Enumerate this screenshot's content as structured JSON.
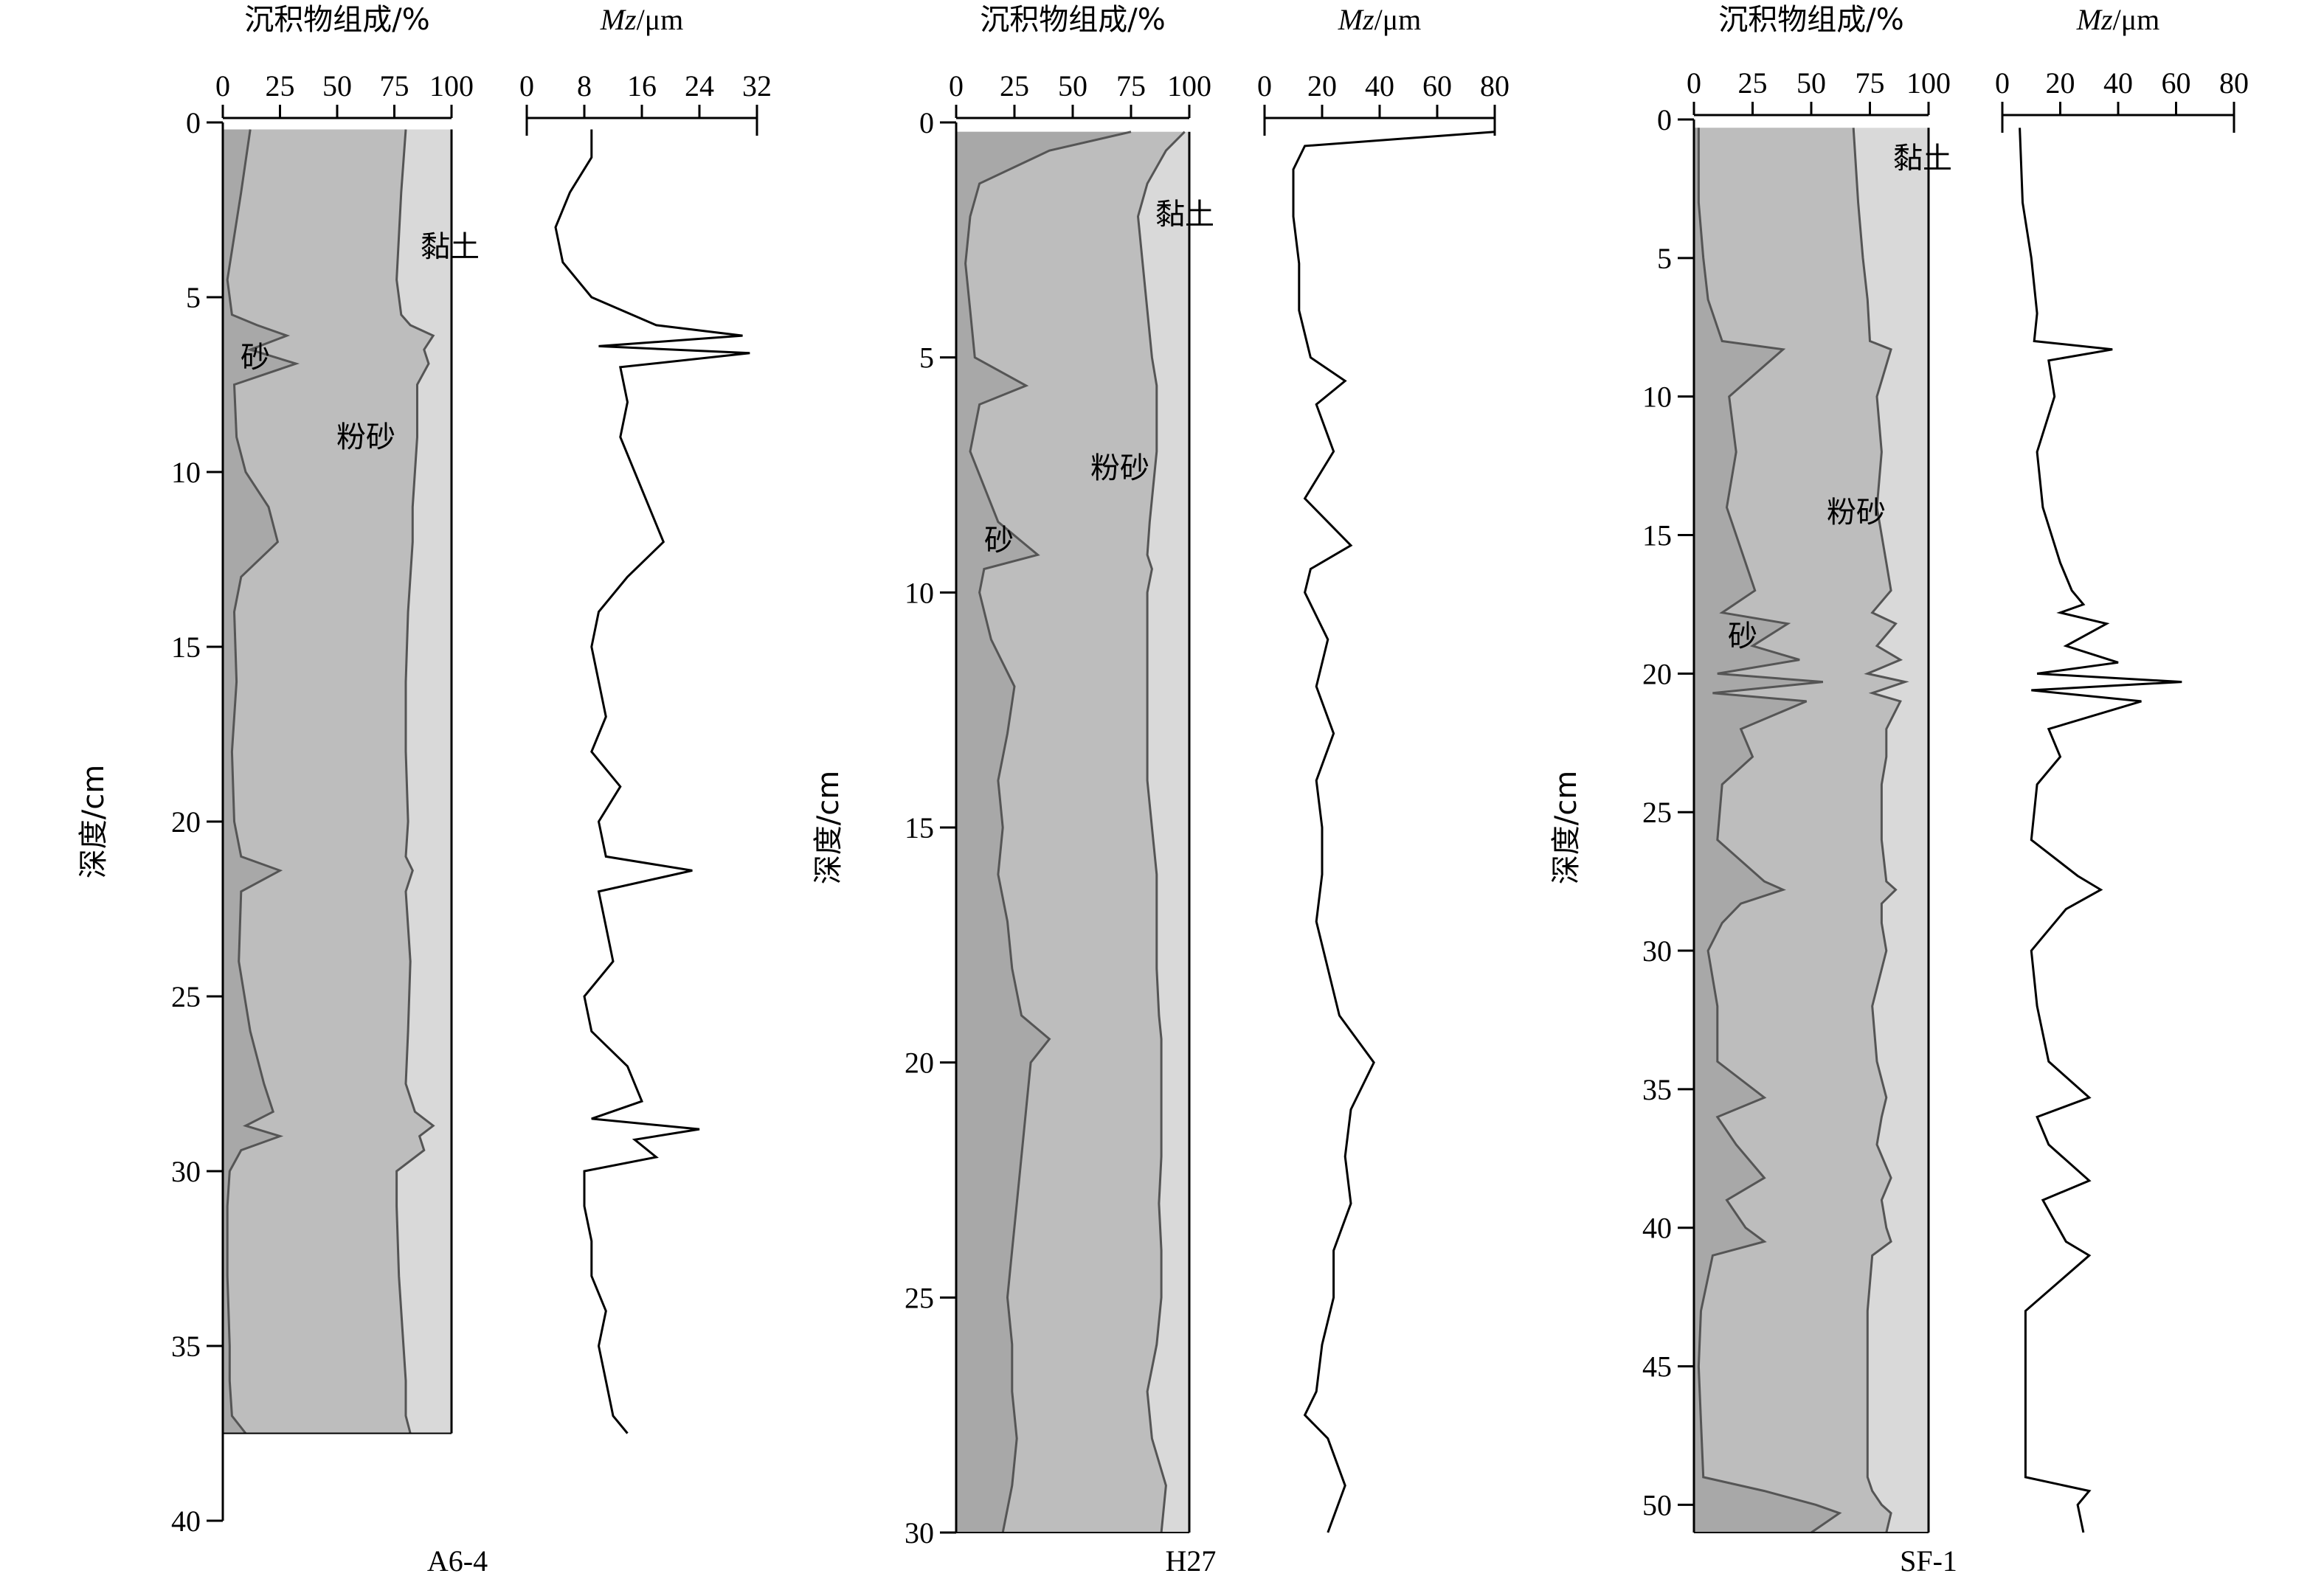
{
  "chart_data": [
    {
      "type": "area",
      "core": "A6-4",
      "composition_title": "沉积物组成/%",
      "mz_title_italic": "Mz",
      "mz_title_unit": "/μm",
      "ylabel": "深度/cm",
      "ylim": [
        0,
        40
      ],
      "yticks": [
        "0",
        "5",
        "10",
        "15",
        "20",
        "25",
        "30",
        "35",
        "40"
      ],
      "comp_xticks": [
        "0",
        "25",
        "50",
        "75",
        "100"
      ],
      "mz_xlim": [
        0,
        32
      ],
      "mz_xticks": [
        "0",
        "8",
        "16",
        "24",
        "32"
      ],
      "labels": {
        "sand": "砂",
        "silt": "粉砂",
        "clay": "黏土"
      },
      "depth": [
        0.2,
        2,
        4.5,
        5.5,
        5.8,
        6.1,
        6.5,
        6.9,
        7.5,
        9,
        10,
        11,
        12,
        13,
        14,
        16,
        18,
        20,
        21,
        21.4,
        22,
        24,
        26,
        27.5,
        28.3,
        28.7,
        29,
        29.4,
        30,
        31,
        33,
        35,
        36,
        37,
        37.5
      ],
      "sand_pct": [
        12,
        8,
        2,
        4,
        15,
        28,
        12,
        32,
        5,
        6,
        10,
        20,
        24,
        8,
        5,
        6,
        4,
        5,
        8,
        25,
        8,
        7,
        12,
        18,
        22,
        10,
        25,
        8,
        3,
        2,
        2,
        3,
        3,
        4,
        10
      ],
      "silt_clay_boundary_pct": [
        80,
        78,
        76,
        78,
        82,
        92,
        88,
        90,
        85,
        85,
        84,
        83,
        83,
        82,
        81,
        80,
        80,
        81,
        80,
        83,
        80,
        82,
        81,
        80,
        84,
        92,
        86,
        88,
        76,
        76,
        77,
        79,
        80,
        80,
        82
      ],
      "mz_depth": [
        0.2,
        1,
        2,
        3,
        4,
        5,
        5.8,
        6.1,
        6.4,
        6.6,
        7,
        8,
        9,
        10,
        11,
        12,
        13,
        14,
        15,
        17,
        18,
        19,
        20,
        21,
        21.4,
        22,
        23,
        24,
        25,
        26,
        27,
        28,
        28.5,
        28.8,
        29.1,
        29.6,
        30,
        31,
        32,
        33,
        34,
        35,
        36,
        37,
        37.5
      ],
      "mz": [
        9,
        9,
        6,
        4,
        5,
        9,
        18,
        30,
        10,
        31,
        13,
        14,
        13,
        15,
        17,
        19,
        14,
        10,
        9,
        11,
        9,
        13,
        10,
        11,
        23,
        10,
        11,
        12,
        8,
        9,
        14,
        16,
        9,
        24,
        15,
        18,
        8,
        8,
        9,
        9,
        11,
        10,
        11,
        12,
        14
      ]
    },
    {
      "type": "area",
      "core": "H27",
      "composition_title": "沉积物组成/%",
      "mz_title_italic": "Mz",
      "mz_title_unit": "/μm",
      "ylabel": "深度/cm",
      "ylim": [
        0,
        30
      ],
      "yticks": [
        "0",
        "5",
        "10",
        "15",
        "20",
        "25",
        "30"
      ],
      "comp_xticks": [
        "0",
        "25",
        "50",
        "75",
        "100"
      ],
      "mz_xlim": [
        0,
        80
      ],
      "mz_xticks": [
        "0",
        "20",
        "40",
        "60",
        "80"
      ],
      "labels": {
        "sand": "砂",
        "silt": "粉砂",
        "clay": "黏土"
      },
      "depth": [
        0.2,
        0.6,
        1.3,
        2,
        3,
        4,
        5,
        5.6,
        6,
        7,
        8.5,
        9.2,
        9.5,
        10,
        11,
        12,
        13,
        14,
        15,
        16,
        17,
        18,
        19,
        19.5,
        20,
        21,
        22,
        23,
        24,
        25,
        26,
        27,
        28,
        29,
        30
      ],
      "sand_pct": [
        75,
        40,
        10,
        6,
        4,
        6,
        8,
        30,
        10,
        6,
        18,
        35,
        12,
        10,
        15,
        25,
        22,
        18,
        20,
        18,
        22,
        24,
        28,
        40,
        32,
        30,
        28,
        26,
        24,
        22,
        24,
        24,
        26,
        24,
        20
      ],
      "silt_clay_boundary_pct": [
        98,
        90,
        82,
        78,
        80,
        82,
        84,
        86,
        86,
        86,
        83,
        82,
        84,
        82,
        82,
        82,
        82,
        82,
        84,
        86,
        86,
        86,
        87,
        88,
        88,
        88,
        88,
        87,
        88,
        88,
        86,
        82,
        84,
        90,
        88
      ],
      "mz_depth": [
        0.2,
        0.5,
        1,
        2,
        3,
        4,
        5,
        5.5,
        6,
        7,
        8,
        9,
        9.5,
        10,
        11,
        12,
        13,
        14,
        15,
        16,
        17,
        18,
        19,
        20,
        21,
        22,
        23,
        24,
        25,
        26,
        27,
        27.5,
        28,
        29,
        30
      ],
      "mz": [
        80,
        14,
        10,
        10,
        12,
        12,
        16,
        28,
        18,
        24,
        14,
        30,
        16,
        14,
        22,
        18,
        24,
        18,
        20,
        20,
        18,
        22,
        26,
        38,
        30,
        28,
        30,
        24,
        24,
        20,
        18,
        14,
        22,
        28,
        22
      ]
    },
    {
      "type": "area",
      "core": "SF-1",
      "composition_title": "沉积物组成/%",
      "mz_title_italic": "Mz",
      "mz_title_unit": "/μm",
      "ylabel": "深度/cm",
      "ylim": [
        0,
        51
      ],
      "yticks": [
        "0",
        "5",
        "10",
        "15",
        "20",
        "25",
        "30",
        "35",
        "40",
        "45",
        "50"
      ],
      "comp_xticks": [
        "0",
        "25",
        "50",
        "75",
        "100"
      ],
      "mz_xlim": [
        0,
        80
      ],
      "mz_xticks": [
        "0",
        "20",
        "40",
        "60",
        "80"
      ],
      "labels": {
        "sand": "砂",
        "silt": "粉砂",
        "clay": "黏土"
      },
      "depth": [
        0.3,
        3,
        5,
        6.5,
        8,
        8.3,
        10,
        12,
        14,
        16,
        17,
        17.8,
        18.2,
        19,
        19.5,
        20,
        20.3,
        20.7,
        21,
        22,
        23,
        24,
        26,
        27.5,
        27.8,
        28.3,
        29,
        30,
        32,
        34,
        35.3,
        36,
        37,
        38.2,
        39,
        40,
        40.5,
        41,
        43,
        45,
        47,
        49,
        49.5,
        50,
        50.3,
        51
      ],
      "sand_pct": [
        2,
        2,
        4,
        6,
        12,
        38,
        15,
        18,
        14,
        22,
        26,
        12,
        40,
        25,
        45,
        10,
        55,
        8,
        48,
        20,
        25,
        12,
        10,
        30,
        38,
        20,
        12,
        6,
        10,
        10,
        30,
        10,
        18,
        30,
        14,
        22,
        30,
        8,
        3,
        2,
        3,
        4,
        30,
        52,
        62,
        50
      ],
      "silt_clay_boundary_pct": [
        68,
        70,
        72,
        74,
        75,
        84,
        78,
        80,
        78,
        82,
        84,
        76,
        86,
        78,
        88,
        74,
        90,
        76,
        88,
        82,
        82,
        80,
        80,
        82,
        86,
        80,
        80,
        82,
        76,
        78,
        82,
        80,
        78,
        84,
        80,
        82,
        84,
        76,
        74,
        74,
        74,
        74,
        76,
        80,
        84,
        82
      ],
      "mz_depth": [
        0.3,
        3,
        5,
        7,
        8,
        8.3,
        8.7,
        10,
        12,
        14,
        16,
        17,
        17.5,
        17.8,
        18.2,
        19,
        19.6,
        20,
        20.3,
        20.6,
        21,
        22,
        23,
        24,
        26,
        27.3,
        27.8,
        28.5,
        29.5,
        30,
        32,
        34,
        35.3,
        36,
        37,
        38.3,
        39,
        40.5,
        41,
        43,
        45,
        47,
        49,
        49.5,
        50,
        51
      ],
      "mz": [
        6,
        7,
        10,
        12,
        11,
        38,
        16,
        18,
        12,
        14,
        20,
        24,
        28,
        20,
        36,
        22,
        40,
        12,
        62,
        10,
        48,
        16,
        20,
        12,
        10,
        26,
        34,
        22,
        14,
        10,
        12,
        16,
        30,
        12,
        16,
        30,
        14,
        22,
        30,
        8,
        8,
        8,
        8,
        30,
        26,
        28
      ]
    }
  ]
}
